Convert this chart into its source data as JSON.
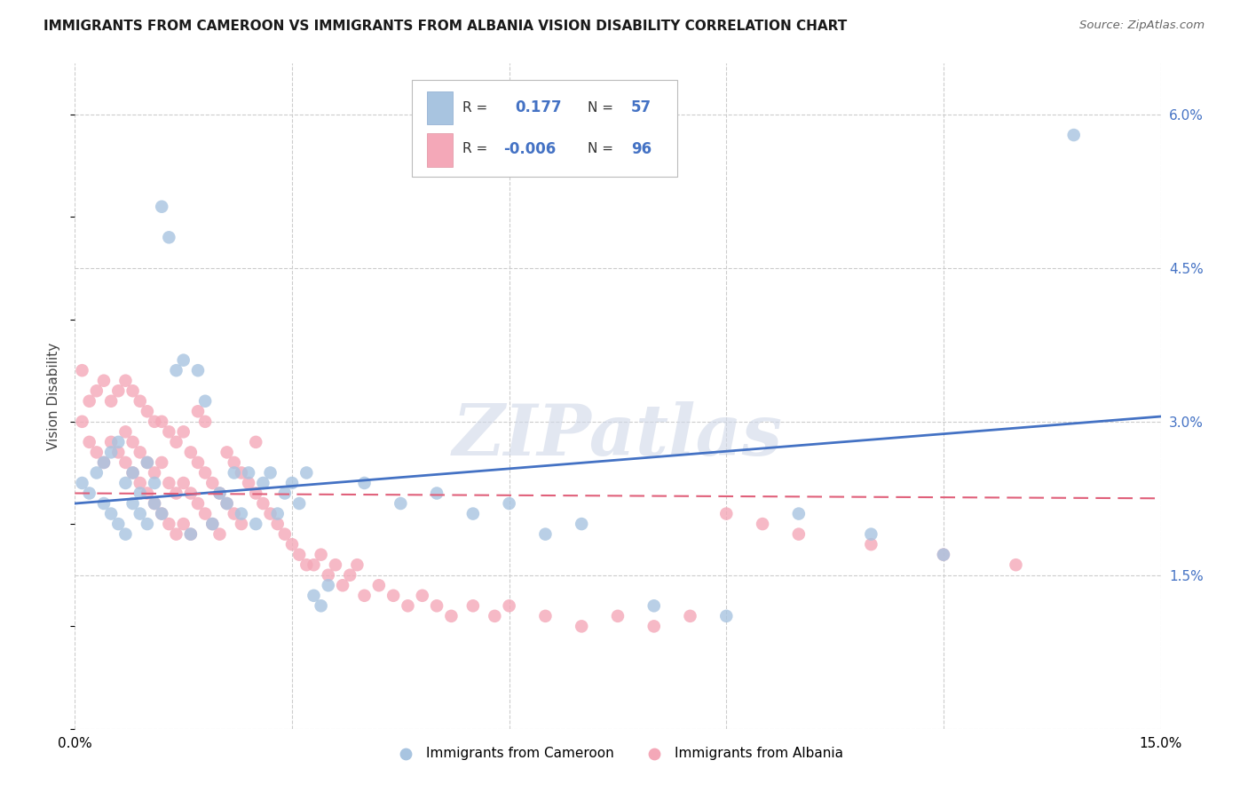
{
  "title": "IMMIGRANTS FROM CAMEROON VS IMMIGRANTS FROM ALBANIA VISION DISABILITY CORRELATION CHART",
  "source": "Source: ZipAtlas.com",
  "ylabel": "Vision Disability",
  "xlim": [
    0.0,
    0.15
  ],
  "ylim": [
    0.0,
    0.065
  ],
  "yticks": [
    0.0,
    0.015,
    0.03,
    0.045,
    0.06
  ],
  "yticklabels_right": [
    "",
    "1.5%",
    "3.0%",
    "4.5%",
    "6.0%"
  ],
  "xtick_positions": [
    0.0,
    0.03,
    0.06,
    0.09,
    0.12,
    0.15
  ],
  "xticklabels": [
    "0.0%",
    "",
    "",
    "",
    "",
    "15.0%"
  ],
  "cameroon_R": 0.177,
  "cameroon_N": 57,
  "albania_R": -0.006,
  "albania_N": 96,
  "cameroon_color": "#a8c4e0",
  "albania_color": "#f4a8b8",
  "cameroon_line_color": "#4472c4",
  "albania_line_color": "#e0607a",
  "background_color": "#ffffff",
  "grid_color": "#cccccc",
  "watermark": "ZIPatlas",
  "cam_line_start_y": 0.022,
  "cam_line_end_y": 0.0305,
  "alb_line_start_y": 0.023,
  "alb_line_end_y": 0.0225,
  "cameroon_x": [
    0.001,
    0.002,
    0.003,
    0.004,
    0.004,
    0.005,
    0.005,
    0.006,
    0.006,
    0.007,
    0.007,
    0.008,
    0.008,
    0.009,
    0.009,
    0.01,
    0.01,
    0.011,
    0.011,
    0.012,
    0.012,
    0.013,
    0.014,
    0.015,
    0.016,
    0.017,
    0.018,
    0.019,
    0.02,
    0.021,
    0.022,
    0.023,
    0.024,
    0.025,
    0.026,
    0.027,
    0.028,
    0.029,
    0.03,
    0.031,
    0.032,
    0.033,
    0.034,
    0.035,
    0.04,
    0.045,
    0.05,
    0.055,
    0.06,
    0.065,
    0.07,
    0.08,
    0.09,
    0.1,
    0.11,
    0.12,
    0.138
  ],
  "cameroon_y": [
    0.024,
    0.023,
    0.025,
    0.022,
    0.026,
    0.021,
    0.027,
    0.02,
    0.028,
    0.019,
    0.024,
    0.022,
    0.025,
    0.021,
    0.023,
    0.02,
    0.026,
    0.022,
    0.024,
    0.021,
    0.051,
    0.048,
    0.035,
    0.036,
    0.019,
    0.035,
    0.032,
    0.02,
    0.023,
    0.022,
    0.025,
    0.021,
    0.025,
    0.02,
    0.024,
    0.025,
    0.021,
    0.023,
    0.024,
    0.022,
    0.025,
    0.013,
    0.012,
    0.014,
    0.024,
    0.022,
    0.023,
    0.021,
    0.022,
    0.019,
    0.02,
    0.012,
    0.011,
    0.021,
    0.019,
    0.017,
    0.058
  ],
  "albania_x": [
    0.001,
    0.001,
    0.002,
    0.002,
    0.003,
    0.003,
    0.004,
    0.004,
    0.005,
    0.005,
    0.006,
    0.006,
    0.007,
    0.007,
    0.007,
    0.008,
    0.008,
    0.008,
    0.009,
    0.009,
    0.009,
    0.01,
    0.01,
    0.01,
    0.011,
    0.011,
    0.011,
    0.012,
    0.012,
    0.012,
    0.013,
    0.013,
    0.013,
    0.014,
    0.014,
    0.014,
    0.015,
    0.015,
    0.015,
    0.016,
    0.016,
    0.016,
    0.017,
    0.017,
    0.017,
    0.018,
    0.018,
    0.018,
    0.019,
    0.019,
    0.02,
    0.02,
    0.021,
    0.021,
    0.022,
    0.022,
    0.023,
    0.023,
    0.024,
    0.025,
    0.025,
    0.026,
    0.027,
    0.028,
    0.029,
    0.03,
    0.031,
    0.032,
    0.033,
    0.034,
    0.035,
    0.036,
    0.037,
    0.038,
    0.039,
    0.04,
    0.042,
    0.044,
    0.046,
    0.048,
    0.05,
    0.052,
    0.055,
    0.058,
    0.06,
    0.065,
    0.07,
    0.075,
    0.08,
    0.085,
    0.09,
    0.095,
    0.1,
    0.11,
    0.12,
    0.13
  ],
  "albania_y": [
    0.03,
    0.035,
    0.028,
    0.032,
    0.027,
    0.033,
    0.026,
    0.034,
    0.028,
    0.032,
    0.027,
    0.033,
    0.026,
    0.029,
    0.034,
    0.025,
    0.028,
    0.033,
    0.024,
    0.027,
    0.032,
    0.023,
    0.026,
    0.031,
    0.022,
    0.025,
    0.03,
    0.021,
    0.026,
    0.03,
    0.02,
    0.024,
    0.029,
    0.019,
    0.023,
    0.028,
    0.02,
    0.024,
    0.029,
    0.019,
    0.023,
    0.027,
    0.022,
    0.026,
    0.031,
    0.021,
    0.025,
    0.03,
    0.02,
    0.024,
    0.019,
    0.023,
    0.022,
    0.027,
    0.021,
    0.026,
    0.02,
    0.025,
    0.024,
    0.023,
    0.028,
    0.022,
    0.021,
    0.02,
    0.019,
    0.018,
    0.017,
    0.016,
    0.016,
    0.017,
    0.015,
    0.016,
    0.014,
    0.015,
    0.016,
    0.013,
    0.014,
    0.013,
    0.012,
    0.013,
    0.012,
    0.011,
    0.012,
    0.011,
    0.012,
    0.011,
    0.01,
    0.011,
    0.01,
    0.011,
    0.021,
    0.02,
    0.019,
    0.018,
    0.017,
    0.016
  ]
}
